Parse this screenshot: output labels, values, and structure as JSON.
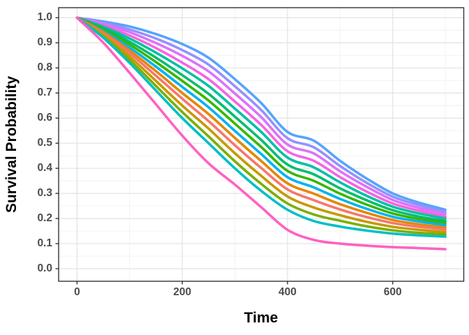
{
  "figure": {
    "xlabel": "Time",
    "ylabel": "Survival Probability"
  },
  "chart_data": {
    "type": "line",
    "title": "",
    "xlabel": "Time",
    "ylabel": "Survival Probability",
    "xlim": [
      -35,
      735
    ],
    "ylim": [
      -0.05,
      1.04
    ],
    "x_ticks": [
      0,
      200,
      400,
      600
    ],
    "x_tick_labels": [
      "0",
      "200",
      "400",
      "600"
    ],
    "x_minor_ticks": [
      100,
      300,
      500,
      700
    ],
    "y_ticks": [
      0.0,
      0.1,
      0.2,
      0.3,
      0.4,
      0.5,
      0.6,
      0.7,
      0.8,
      0.9,
      1.0
    ],
    "y_tick_labels": [
      "0.0",
      "0.1",
      "0.2",
      "0.3",
      "0.4",
      "0.5",
      "0.6",
      "0.7",
      "0.8",
      "0.9",
      "1.0"
    ],
    "y_minor_ticks": [
      0.05,
      0.15,
      0.25,
      0.35,
      0.45,
      0.55,
      0.65,
      0.75,
      0.85,
      0.95
    ],
    "grid": true,
    "legend_position": "none",
    "line_width": 3.6,
    "x": [
      0,
      50,
      100,
      150,
      200,
      250,
      300,
      350,
      400,
      450,
      500,
      550,
      600,
      650,
      700
    ],
    "series": [
      {
        "name": "curve-01",
        "color": "#57A3FF",
        "values": [
          1.0,
          0.985,
          0.965,
          0.935,
          0.895,
          0.84,
          0.755,
          0.66,
          0.545,
          0.51,
          0.43,
          0.36,
          0.3,
          0.263,
          0.235
        ]
      },
      {
        "name": "curve-02",
        "color": "#9590FF",
        "values": [
          1.0,
          0.98,
          0.953,
          0.917,
          0.871,
          0.813,
          0.727,
          0.632,
          0.52,
          0.484,
          0.409,
          0.343,
          0.287,
          0.253,
          0.226
        ]
      },
      {
        "name": "curve-03",
        "color": "#DB72FB",
        "values": [
          1.0,
          0.975,
          0.942,
          0.899,
          0.848,
          0.786,
          0.698,
          0.604,
          0.495,
          0.459,
          0.388,
          0.327,
          0.274,
          0.242,
          0.218
        ]
      },
      {
        "name": "curve-04",
        "color": "#F564E3",
        "values": [
          1.0,
          0.969,
          0.929,
          0.879,
          0.821,
          0.755,
          0.666,
          0.573,
          0.468,
          0.43,
          0.365,
          0.308,
          0.26,
          0.231,
          0.208
        ]
      },
      {
        "name": "curve-05",
        "color": "#00C1A3",
        "values": [
          1.0,
          0.964,
          0.917,
          0.861,
          0.798,
          0.728,
          0.638,
          0.545,
          0.443,
          0.404,
          0.344,
          0.291,
          0.247,
          0.22,
          0.2
        ]
      },
      {
        "name": "curve-06",
        "color": "#00BD70",
        "values": [
          1.0,
          0.958,
          0.904,
          0.841,
          0.771,
          0.697,
          0.606,
          0.513,
          0.415,
          0.376,
          0.32,
          0.273,
          0.233,
          0.208,
          0.19
        ]
      },
      {
        "name": "curve-07",
        "color": "#39B600",
        "values": [
          1.0,
          0.953,
          0.893,
          0.823,
          0.748,
          0.67,
          0.578,
          0.485,
          0.39,
          0.35,
          0.299,
          0.256,
          0.22,
          0.198,
          0.182
        ]
      },
      {
        "name": "curve-08",
        "color": "#00B2F3",
        "values": [
          1.0,
          0.947,
          0.881,
          0.805,
          0.724,
          0.643,
          0.549,
          0.457,
          0.365,
          0.324,
          0.278,
          0.239,
          0.207,
          0.188,
          0.173
        ]
      },
      {
        "name": "curve-09",
        "color": "#E58700",
        "values": [
          1.0,
          0.942,
          0.869,
          0.787,
          0.7,
          0.616,
          0.521,
          0.429,
          0.34,
          0.299,
          0.257,
          0.223,
          0.194,
          0.177,
          0.164
        ]
      },
      {
        "name": "curve-10",
        "color": "#F8766D",
        "values": [
          1.0,
          0.937,
          0.858,
          0.769,
          0.677,
          0.588,
          0.492,
          0.401,
          0.316,
          0.273,
          0.236,
          0.206,
          0.182,
          0.167,
          0.156
        ]
      },
      {
        "name": "curve-11",
        "color": "#C49A00",
        "values": [
          1.0,
          0.931,
          0.845,
          0.748,
          0.65,
          0.558,
          0.46,
          0.37,
          0.288,
          0.244,
          0.213,
          0.187,
          0.167,
          0.155,
          0.146
        ]
      },
      {
        "name": "curve-12",
        "color": "#7CAE00",
        "values": [
          1.0,
          0.925,
          0.832,
          0.728,
          0.624,
          0.527,
          0.428,
          0.338,
          0.26,
          0.216,
          0.191,
          0.169,
          0.153,
          0.143,
          0.137
        ]
      },
      {
        "name": "curve-13",
        "color": "#00BFC4",
        "values": [
          1.0,
          0.92,
          0.82,
          0.71,
          0.6,
          0.5,
          0.4,
          0.31,
          0.235,
          0.19,
          0.168,
          0.152,
          0.14,
          0.133,
          0.128
        ]
      },
      {
        "name": "curve-14",
        "color": "#FF61C3",
        "values": [
          1.0,
          0.9,
          0.78,
          0.655,
          0.53,
          0.42,
          0.335,
          0.245,
          0.155,
          0.115,
          0.1,
          0.092,
          0.086,
          0.082,
          0.078
        ]
      }
    ]
  },
  "style_colors": {
    "panel_border": "#333333",
    "major_grid": "#e2e2e2",
    "minor_grid": "#f0f0f0",
    "tick_mark": "#333333",
    "tick_text": "#4d4d4d",
    "axis_title_text": "#000000",
    "background": "#ffffff"
  }
}
